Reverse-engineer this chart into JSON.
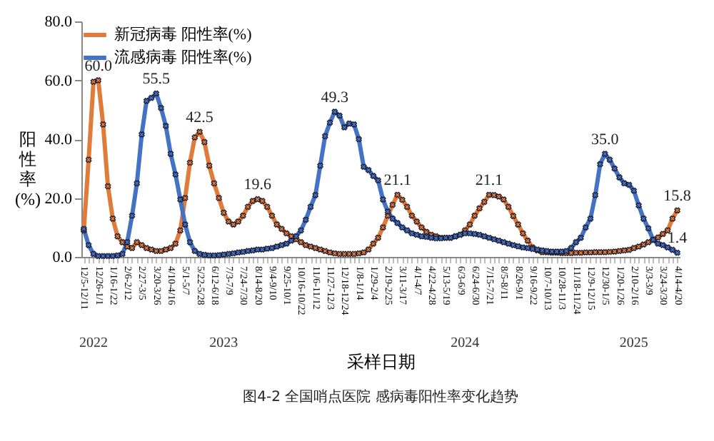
{
  "chart_data": {
    "type": "line",
    "title": "图4-2 全国哨点医院 感病毒阳性率变化趋势",
    "xlabel": "采样日期",
    "ylabel": "阳性率(%)",
    "categories": [
      "12/5-12/11",
      null,
      null,
      "12/26-1/1",
      null,
      null,
      "1/16-1/22",
      null,
      null,
      "2/6-2/12",
      null,
      null,
      "2/27-3/5",
      null,
      null,
      "3/20-3/26",
      null,
      null,
      "4/10-4/16",
      null,
      null,
      "5/1-5/7",
      null,
      null,
      "5/22-5/28",
      null,
      null,
      "6/12-6/18",
      null,
      null,
      "7/3-7/9",
      null,
      null,
      "7/24-7/30",
      null,
      null,
      "8/14-8/20",
      null,
      null,
      "9/4-9/10",
      null,
      null,
      "9/25-10/1",
      null,
      null,
      "10/16-10/22",
      null,
      null,
      "11/6-11/12",
      null,
      null,
      "11/27-12/3",
      null,
      null,
      "12/18-12/24",
      null,
      null,
      "1/8-1/14",
      null,
      null,
      "1/29-2/4",
      null,
      null,
      "2/19-2/25",
      null,
      null,
      "3/11-3/17",
      null,
      null,
      "4/1-4/7",
      null,
      null,
      "4/22-4/28",
      null,
      null,
      "5/13-5/19",
      null,
      null,
      "6/3-6/9",
      null,
      null,
      "6/24-6/30",
      null,
      null,
      "7/15-7/21",
      null,
      null,
      "8/5-8/11",
      null,
      null,
      "8/26-9/1",
      null,
      null,
      "9/16-9/22",
      null,
      null,
      "10/7-10/13",
      null,
      null,
      "10/28-11/3",
      null,
      null,
      "11/18-11/24",
      null,
      null,
      "12/9-12/15",
      null,
      null,
      "12/30-1/5",
      null,
      null,
      "1/20-1/26",
      null,
      null,
      "2/10-2/16",
      null,
      null,
      "3/3-3/9",
      null,
      null,
      "3/24-3/30",
      null,
      null,
      "4/14-4/20"
    ],
    "series": [
      {
        "name": "新冠病毒 阳性率(%)",
        "color": "#e07b39",
        "values": [
          9,
          33,
          59.5,
          60.0,
          45,
          24,
          13,
          7,
          5,
          3.5,
          3,
          5,
          4,
          3,
          2.5,
          2,
          2,
          2.5,
          3,
          4.5,
          9,
          20,
          32,
          40.6,
          42.5,
          39,
          31,
          25,
          20,
          15,
          12,
          11,
          12,
          14,
          17,
          19,
          19.6,
          19,
          17,
          14,
          11,
          9.5,
          8,
          7,
          6,
          5,
          4,
          3.5,
          3,
          2.5,
          2,
          1.5,
          1.2,
          1,
          1,
          1,
          1,
          1.2,
          1.5,
          2.5,
          4.5,
          6.5,
          10,
          14,
          17.7,
          21.1,
          19.4,
          17,
          14,
          12,
          10,
          8.5,
          7.5,
          7,
          6.5,
          6.5,
          6.5,
          7,
          7.5,
          9,
          11,
          14,
          16.5,
          18.7,
          21.1,
          21,
          20.5,
          19.5,
          17,
          13.9,
          11,
          8,
          5.5,
          3.2,
          2.2,
          1.6,
          1.5,
          1.4,
          1.4,
          1.3,
          1.3,
          1.3,
          1.4,
          1.4,
          1.5,
          1.5,
          1.6,
          1.6,
          1.6,
          1.7,
          1.8,
          2,
          2.2,
          2.4,
          3,
          3.5,
          4.2,
          5,
          5.8,
          6.6,
          7.8,
          9,
          13,
          15.8
        ],
        "value_labels": [
          null,
          null,
          null,
          "60.0",
          null,
          null,
          null,
          null,
          null,
          null,
          null,
          null,
          null,
          null,
          null,
          null,
          null,
          null,
          null,
          null,
          null,
          null,
          null,
          null,
          "42.5",
          null,
          null,
          null,
          null,
          null,
          null,
          null,
          null,
          null,
          null,
          null,
          "19.6",
          null,
          null,
          null,
          null,
          null,
          null,
          null,
          null,
          null,
          null,
          null,
          null,
          null,
          null,
          null,
          null,
          null,
          null,
          null,
          null,
          null,
          null,
          null,
          null,
          null,
          null,
          null,
          null,
          "21.1",
          null,
          null,
          null,
          null,
          null,
          null,
          null,
          null,
          null,
          null,
          null,
          null,
          null,
          null,
          null,
          null,
          null,
          null,
          "21.1",
          null,
          null,
          null,
          null,
          null,
          null,
          null,
          null,
          null,
          null,
          null,
          null,
          null,
          null,
          null,
          null,
          null,
          null,
          null,
          null,
          null,
          null,
          null,
          null,
          null,
          null,
          null,
          null,
          null,
          null,
          null,
          null,
          null,
          null,
          null,
          null,
          null,
          null,
          "15.8"
        ]
      },
      {
        "name": "流感病毒 阳性率(%)",
        "color": "#4472c4",
        "values": [
          9.5,
          4,
          1,
          0.3,
          0.3,
          0.3,
          0.3,
          0.5,
          1,
          5,
          14,
          25,
          41.6,
          53,
          54,
          55.5,
          50.6,
          44.5,
          35,
          28,
          19.5,
          11,
          5,
          2,
          1,
          0.7,
          0.5,
          0.5,
          0.6,
          0.8,
          1,
          1.2,
          1.5,
          1.7,
          2,
          2.2,
          2.5,
          2.5,
          2.8,
          3,
          3.5,
          4,
          4.5,
          5.5,
          7,
          9,
          12.6,
          17,
          21,
          31,
          41,
          45.6,
          49.3,
          48,
          44,
          45.3,
          45,
          40,
          30.6,
          29.5,
          27.5,
          26,
          19.5,
          15.4,
          13,
          11.5,
          10,
          9,
          8,
          7.5,
          7,
          6.8,
          6.5,
          6.3,
          6.3,
          6.5,
          6.5,
          7,
          7.5,
          8,
          8,
          7.8,
          7.5,
          7,
          6.5,
          6,
          5.5,
          5,
          4.5,
          4,
          3.6,
          3.2,
          3,
          2.7,
          2.5,
          2.2,
          2,
          1.8,
          1.8,
          1.8,
          2,
          3,
          5,
          6.5,
          10,
          13,
          21,
          31.5,
          35.0,
          33,
          30,
          27,
          25,
          24.5,
          22.5,
          17.5,
          13,
          9.7,
          5.8,
          4.5,
          4,
          3.2,
          2.4,
          1.4
        ],
        "value_labels": [
          null,
          null,
          null,
          null,
          null,
          null,
          null,
          null,
          null,
          null,
          null,
          null,
          null,
          null,
          null,
          "55.5",
          null,
          null,
          null,
          null,
          null,
          null,
          null,
          null,
          null,
          null,
          null,
          null,
          null,
          null,
          null,
          null,
          null,
          null,
          null,
          null,
          null,
          null,
          null,
          null,
          null,
          null,
          null,
          null,
          null,
          null,
          null,
          null,
          null,
          null,
          null,
          null,
          "49.3",
          null,
          null,
          null,
          null,
          null,
          null,
          null,
          null,
          null,
          null,
          null,
          null,
          null,
          null,
          null,
          null,
          null,
          null,
          null,
          null,
          null,
          null,
          null,
          null,
          null,
          null,
          null,
          null,
          null,
          null,
          null,
          null,
          null,
          null,
          null,
          null,
          null,
          null,
          null,
          null,
          null,
          null,
          null,
          null,
          null,
          null,
          null,
          null,
          null,
          null,
          null,
          null,
          null,
          null,
          null,
          "35.0",
          null,
          null,
          null,
          null,
          null,
          null,
          null,
          null,
          null,
          null,
          null,
          null,
          null,
          null,
          "1.4"
        ]
      }
    ],
    "annotations": [
      "2022",
      "2023",
      "2024",
      "2025"
    ],
    "ylim": [
      0,
      80
    ],
    "yticks": [
      {
        "value": 0,
        "label": "0.0"
      },
      {
        "value": 20,
        "label": "20.0"
      },
      {
        "value": 40,
        "label": "40.0"
      },
      {
        "value": 60,
        "label": "60.0"
      },
      {
        "value": 80,
        "label": "80.0"
      }
    ],
    "grid": false,
    "legend": "top left",
    "marker": "cross",
    "line_style": "solid"
  }
}
